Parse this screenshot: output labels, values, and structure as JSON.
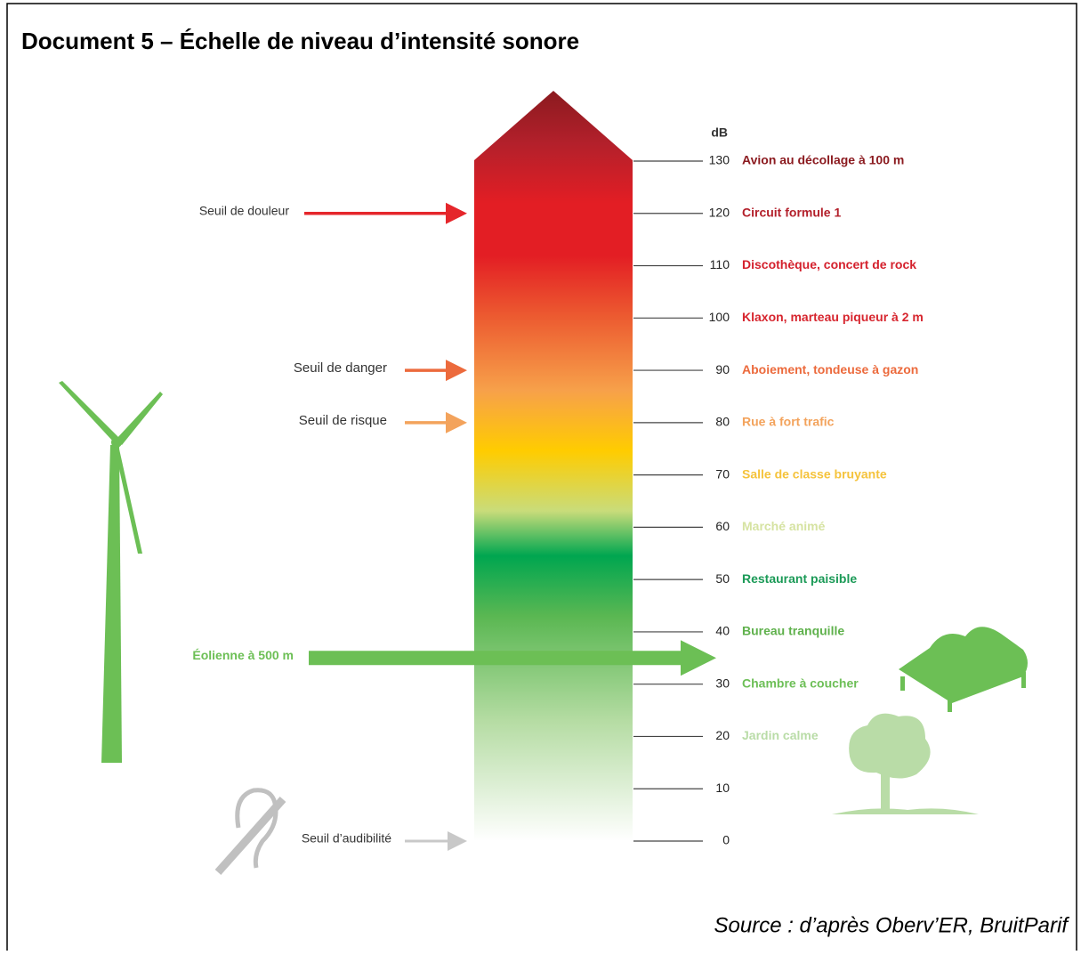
{
  "header": {
    "title": "Document 5 – Échelle de niveau d’intensité sonore"
  },
  "scale": {
    "unit": "dB",
    "levels": [
      {
        "value": 130,
        "label": "Avion au décollage à 100 m",
        "color": "#8b1a1f"
      },
      {
        "value": 120,
        "label": "Circuit formule 1",
        "color": "#b3202b"
      },
      {
        "value": 110,
        "label": "Discothèque, concert de rock",
        "color": "#d4202c"
      },
      {
        "value": 100,
        "label": "Klaxon, marteau piqueur à 2 m",
        "color": "#d7262f"
      },
      {
        "value": 90,
        "label": "Aboiement, tondeuse à gazon",
        "color": "#ec6a3c"
      },
      {
        "value": 80,
        "label": "Rue à fort trafic",
        "color": "#f3a35c"
      },
      {
        "value": 70,
        "label": "Salle de classe bruyante",
        "color": "#f5c33c"
      },
      {
        "value": 60,
        "label": "Marché animé",
        "color": "#d6e3a2"
      },
      {
        "value": 50,
        "label": "Restaurant paisible",
        "color": "#1b9a57"
      },
      {
        "value": 40,
        "label": "Bureau tranquille",
        "color": "#5fb14c"
      },
      {
        "value": 30,
        "label": "Chambre à coucher",
        "color": "#6dbf57"
      },
      {
        "value": 20,
        "label": "Jardin calme",
        "color": "#b9dca7"
      },
      {
        "value": 10
      },
      {
        "value": 0
      }
    ]
  },
  "thresholds": [
    {
      "label": "Seuil de douleur",
      "level": 120,
      "color": "#e5262b"
    },
    {
      "label": "Seuil de danger",
      "level": 90,
      "color": "#ec6a3c"
    },
    {
      "label": "Seuil de risque",
      "level": 80,
      "color": "#f3a35c"
    },
    {
      "label": "Éolienne à 500 m",
      "level": 35,
      "color": "#6cbf55"
    },
    {
      "label": "Seuil d’audibilité",
      "level": 0,
      "color": "#c8c8c8"
    }
  ],
  "footer": {
    "source": "Source : d’après Oberv’ER, BruitParif"
  }
}
